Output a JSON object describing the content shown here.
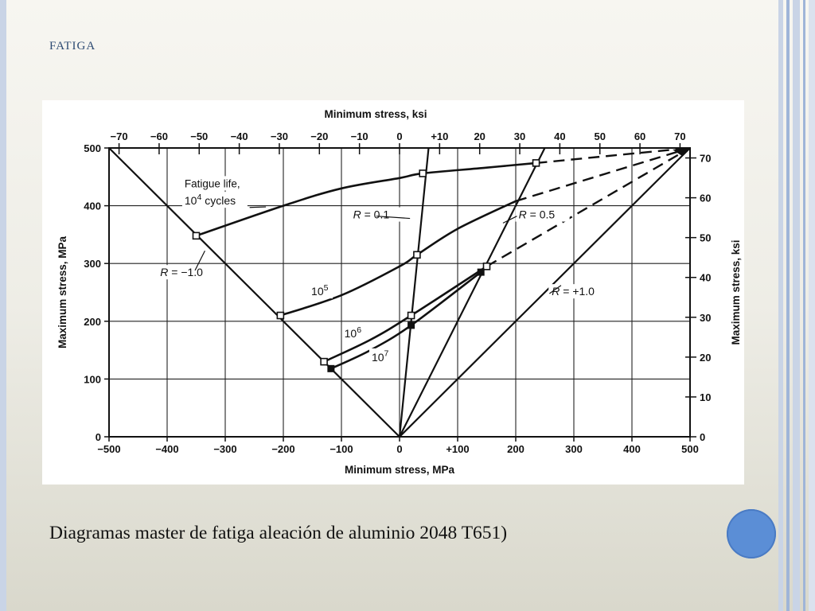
{
  "slide": {
    "header": "FATIGA",
    "caption": "Diagramas master de fatiga aleación de aluminio 2048 T651)"
  },
  "colors": {
    "accent": "#5b8ed6",
    "side_lines": "#9fb5d8",
    "ink": "#111111"
  },
  "chart_data": {
    "type": "line",
    "xlabel": "Minimum stress, MPa",
    "ylabel": "Maximum stress, MPa",
    "x2label": "Minimum stress, ksi",
    "y2label": "Maximum stress, ksi",
    "xlim": [
      -500,
      500
    ],
    "ylim": [
      0,
      500
    ],
    "ksi_top_lim": [
      -72.5,
      72.5
    ],
    "ksi_right_lim": [
      0,
      72.5
    ],
    "x_ticks": [
      -500,
      -400,
      -300,
      -200,
      -100,
      0,
      100,
      200,
      300,
      400,
      500
    ],
    "x_tick_labels": [
      "−500",
      "−400",
      "−300",
      "−200",
      "−100",
      "0",
      "+100",
      "200",
      "300",
      "400",
      "500"
    ],
    "y_ticks": [
      0,
      100,
      200,
      300,
      400,
      500
    ],
    "y_tick_labels": [
      "0",
      "100",
      "200",
      "300",
      "400",
      "500"
    ],
    "top_ticks": [
      -70,
      -60,
      -50,
      -40,
      -30,
      -20,
      -10,
      0,
      10,
      20,
      30,
      40,
      50,
      60,
      70
    ],
    "top_tick_labels": [
      "−70",
      "−60",
      "−50",
      "−40",
      "−30",
      "−20",
      "−10",
      "0",
      "+10",
      "20",
      "30",
      "40",
      "50",
      "60",
      "70"
    ],
    "right_ticks": [
      0,
      10,
      20,
      30,
      40,
      50,
      60,
      70
    ],
    "right_tick_labels": [
      "0",
      "10",
      "20",
      "30",
      "40",
      "50",
      "60",
      "70"
    ],
    "grid": true,
    "r_lines": [
      {
        "label": "R = −1.0",
        "points": [
          [
            -500,
            500
          ],
          [
            0,
            0
          ]
        ],
        "label_at": [
          -412,
          278
        ]
      },
      {
        "label": "R = 0.1",
        "points": [
          [
            0,
            0
          ],
          [
            50,
            500
          ]
        ],
        "label_at": [
          -80,
          378
        ]
      },
      {
        "label": "R = 0.5",
        "points": [
          [
            0,
            0
          ],
          [
            250,
            500
          ]
        ],
        "label_at": [
          205,
          378
        ]
      },
      {
        "label": "R = +1.0",
        "points": [
          [
            0,
            0
          ],
          [
            500,
            500
          ]
        ],
        "label_at": [
          262,
          245
        ]
      }
    ],
    "series": [
      {
        "name": "10⁴",
        "points": [
          [
            -350,
            348
          ],
          [
            -200,
            400
          ],
          [
            -100,
            430
          ],
          [
            0,
            448
          ],
          [
            40,
            456
          ],
          [
            150,
            466
          ],
          [
            235,
            474
          ]
        ],
        "dashed_from": [
          [
            235,
            474
          ],
          [
            500,
            500
          ]
        ]
      },
      {
        "name": "10⁵",
        "points": [
          [
            -205,
            210
          ],
          [
            -100,
            245
          ],
          [
            0,
            295
          ],
          [
            30,
            315
          ],
          [
            100,
            360
          ],
          [
            200,
            408
          ]
        ],
        "dashed_from": [
          [
            200,
            408
          ],
          [
            500,
            500
          ]
        ]
      },
      {
        "name": "10⁶",
        "points": [
          [
            -130,
            130
          ],
          [
            -50,
            168
          ],
          [
            20,
            210
          ],
          [
            150,
            295
          ]
        ],
        "dashed_from": [
          [
            150,
            295
          ],
          [
            500,
            500
          ]
        ]
      },
      {
        "name": "10⁷",
        "points": [
          [
            -118,
            118
          ],
          [
            -50,
            150
          ],
          [
            20,
            193
          ],
          [
            140,
            285
          ]
        ]
      }
    ],
    "markers": {
      "open": [
        [
          -350,
          348
        ],
        [
          -205,
          210
        ],
        [
          -130,
          130
        ],
        [
          20,
          210
        ],
        [
          150,
          295
        ],
        [
          40,
          456
        ],
        [
          235,
          474
        ],
        [
          30,
          315
        ]
      ],
      "filled": [
        [
          -118,
          118
        ],
        [
          20,
          193
        ],
        [
          140,
          285
        ]
      ]
    },
    "annotations": [
      {
        "text": "Fatigue life,",
        "at": [
          -370,
          432
        ]
      },
      {
        "text": "10⁴ cycles",
        "at": [
          -370,
          402
        ]
      },
      {
        "text": "10⁵",
        "at": [
          -152,
          245
        ]
      },
      {
        "text": "10⁶",
        "at": [
          -95,
          172
        ]
      },
      {
        "text": "10⁷",
        "at": [
          -48,
          131
        ]
      }
    ]
  }
}
